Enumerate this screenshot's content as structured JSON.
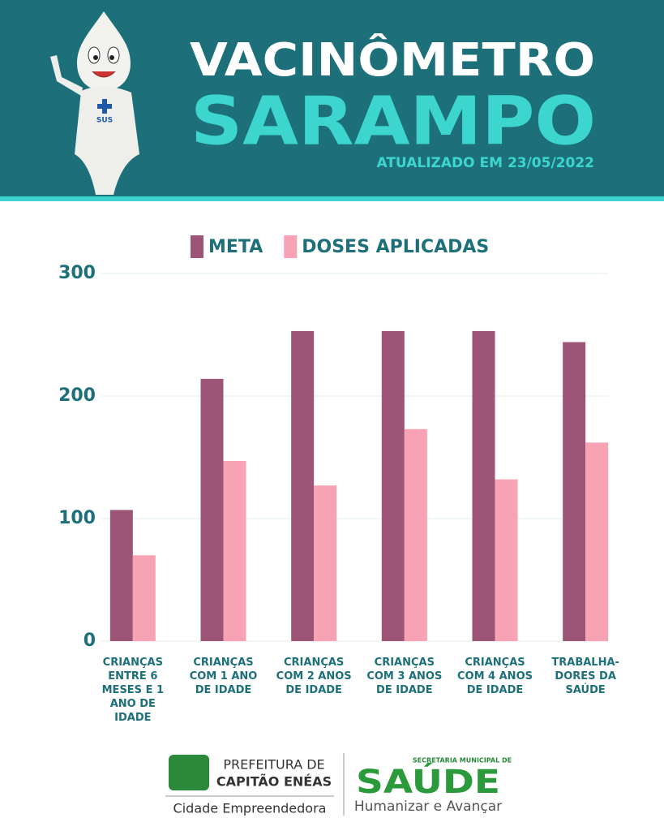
{
  "chart_data": {
    "type": "bar",
    "title": "VACINÔMETRO",
    "subtitle": "SARAMPO",
    "annotation": "ATUALIZADO EM 23/05/2022",
    "categories": [
      "CRIANÇAS ENTRE 6 MESES E 1 ANO DE IDADE",
      "CRIANÇAS COM 1 ANO DE IDADE",
      "CRIANÇAS COM 2 ANOS DE IDADE",
      "CRIANÇAS COM 3 ANOS DE IDADE",
      "CRIANÇAS COM 4 ANOS DE IDADE",
      "TRABALHA-DORES DA SAÚDE"
    ],
    "series": [
      {
        "name": "META",
        "color": "#9c5577",
        "values": [
          107,
          214,
          253,
          253,
          253,
          244
        ]
      },
      {
        "name": "DOSES APLICADAS",
        "color": "#f7a3b3",
        "values": [
          70,
          147,
          127,
          173,
          132,
          162
        ]
      }
    ],
    "ylim": [
      0,
      300
    ],
    "yticks": [
      0,
      100,
      200,
      300
    ],
    "grid": true,
    "legend": "top"
  },
  "footer": {
    "city_line1": "PREFEITURA DE",
    "city_line2": "CAPITÃO ENÉAS",
    "city_slogan": "Cidade Empreendedora",
    "health_dept": "SECRETARIA MUNICIPAL DE",
    "health_name": "SAÚDE",
    "health_slogan": "Humanizar e Avançar"
  }
}
